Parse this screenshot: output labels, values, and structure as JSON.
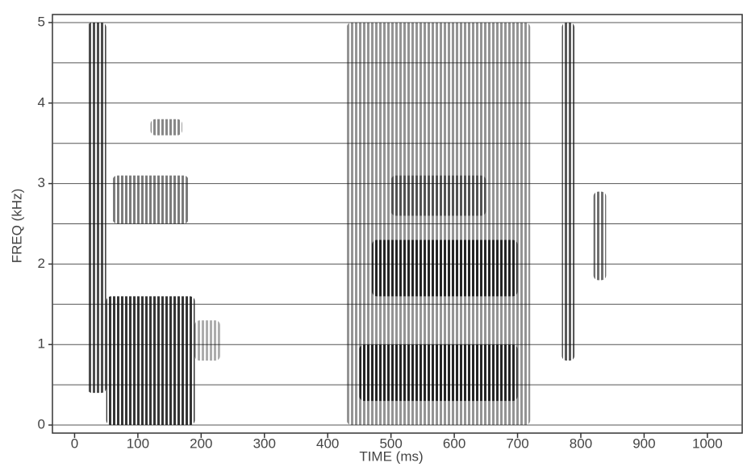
{
  "chart_data": {
    "type": "spectrogram",
    "xlabel": "TIME (ms)",
    "ylabel": "FREQ (kHz)",
    "xlim": [
      -35,
      1055
    ],
    "ylim": [
      -0.1,
      5.1
    ],
    "xticks": [
      0,
      100,
      200,
      300,
      400,
      500,
      600,
      700,
      800,
      900,
      1000
    ],
    "yticks": [
      0,
      1,
      2,
      3,
      4,
      5
    ],
    "ygrid": [
      0,
      0.5,
      1,
      1.5,
      2,
      2.5,
      3,
      3.5,
      4,
      4.5,
      5
    ],
    "color": "#111",
    "regions": [
      {
        "time": [
          20,
          50
        ],
        "freq": [
          0.4,
          5
        ],
        "intensity": 0.75
      },
      {
        "time": [
          50,
          190
        ],
        "freq": [
          0,
          1.6
        ],
        "intensity": 0.85
      },
      {
        "time": [
          190,
          230
        ],
        "freq": [
          0.8,
          1.3
        ],
        "intensity": 0.35
      },
      {
        "time": [
          60,
          180
        ],
        "freq": [
          2.5,
          3.1
        ],
        "intensity": 0.55
      },
      {
        "time": [
          120,
          170
        ],
        "freq": [
          3.6,
          3.8
        ],
        "intensity": 0.5
      },
      {
        "time": [
          430,
          720
        ],
        "freq": [
          0,
          5
        ],
        "intensity": 0.45
      },
      {
        "time": [
          470,
          700
        ],
        "freq": [
          1.6,
          2.3
        ],
        "intensity": 0.85
      },
      {
        "time": [
          450,
          700
        ],
        "freq": [
          0.3,
          1.0
        ],
        "intensity": 0.85
      },
      {
        "time": [
          500,
          650
        ],
        "freq": [
          2.6,
          3.1
        ],
        "intensity": 0.5
      },
      {
        "time": [
          770,
          790
        ],
        "freq": [
          0.8,
          5
        ],
        "intensity": 0.7
      },
      {
        "time": [
          820,
          840
        ],
        "freq": [
          1.8,
          2.9
        ],
        "intensity": 0.6
      }
    ]
  }
}
